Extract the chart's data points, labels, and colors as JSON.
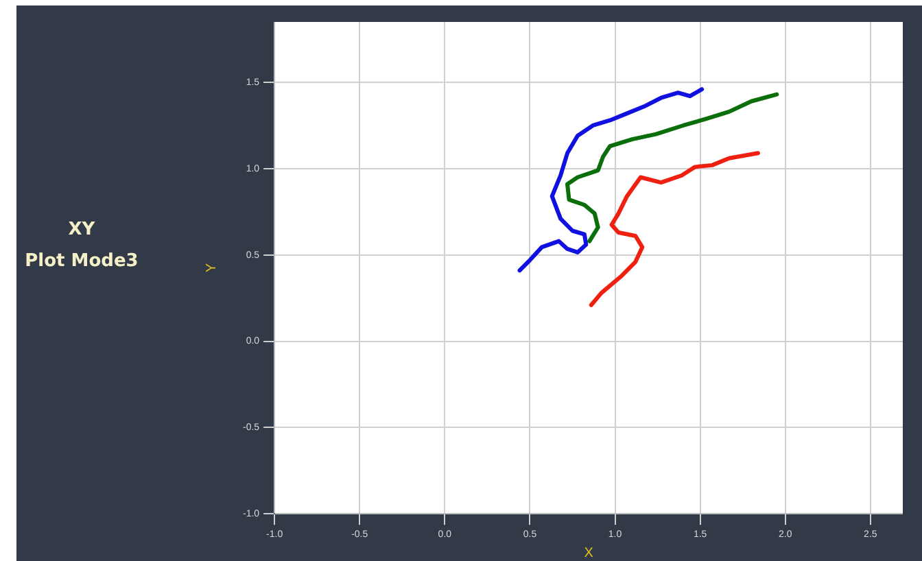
{
  "chart_data": {
    "type": "line",
    "title": "XY",
    "subtitle": "Plot Mode3",
    "xlabel": "X",
    "ylabel": "Y",
    "xlim": [
      -1,
      2.69
    ],
    "ylim": [
      -1,
      1.85
    ],
    "xticks": [
      {
        "value": -1,
        "label": "-1.0"
      },
      -0.5,
      {
        "value": 0,
        "label": "0.0"
      },
      0.5,
      {
        "value": 1,
        "label": "1.0"
      },
      1.5,
      {
        "value": 2,
        "label": "2.0"
      },
      2.5
    ],
    "yticks": [
      {
        "value": -1,
        "label": "-1.0"
      },
      -0.5,
      {
        "value": 0,
        "label": "0.0"
      },
      0.5,
      {
        "value": 1,
        "label": "1.0"
      },
      1.5
    ],
    "grid": true,
    "legend": false,
    "marker": "none",
    "line_style": "solid",
    "series": [
      {
        "color": "#1010e0",
        "x": [
          0.44,
          0.5,
          0.57,
          0.67,
          0.72,
          0.78,
          0.83,
          0.82,
          0.75,
          0.68,
          0.63,
          0.68,
          0.72,
          0.78,
          0.87,
          0.97,
          1.07,
          1.17,
          1.27,
          1.37,
          1.44,
          1.51
        ],
        "values": [
          0.41,
          0.47,
          0.545,
          0.58,
          0.535,
          0.515,
          0.56,
          0.62,
          0.64,
          0.71,
          0.84,
          0.96,
          1.09,
          1.19,
          1.25,
          1.28,
          1.32,
          1.36,
          1.41,
          1.44,
          1.42,
          1.46
        ]
      },
      {
        "color": "#0a6e0a",
        "x": [
          0.85,
          0.9,
          0.88,
          0.82,
          0.73,
          0.72,
          0.78,
          0.9,
          0.93,
          0.97,
          1.1,
          1.24,
          1.4,
          1.54,
          1.67,
          1.8,
          1.95
        ],
        "values": [
          0.58,
          0.66,
          0.74,
          0.79,
          0.82,
          0.91,
          0.95,
          0.99,
          1.07,
          1.13,
          1.17,
          1.2,
          1.25,
          1.29,
          1.33,
          1.39,
          1.43
        ]
      },
      {
        "color": "#f02010",
        "x": [
          0.86,
          0.92,
          1.04,
          1.12,
          1.16,
          1.12,
          1.02,
          0.98,
          1.02,
          1.07,
          1.15,
          1.27,
          1.39,
          1.47,
          1.57,
          1.67,
          1.84
        ],
        "values": [
          0.21,
          0.28,
          0.38,
          0.46,
          0.545,
          0.61,
          0.63,
          0.675,
          0.74,
          0.84,
          0.95,
          0.92,
          0.96,
          1.01,
          1.02,
          1.06,
          1.09
        ]
      }
    ]
  }
}
